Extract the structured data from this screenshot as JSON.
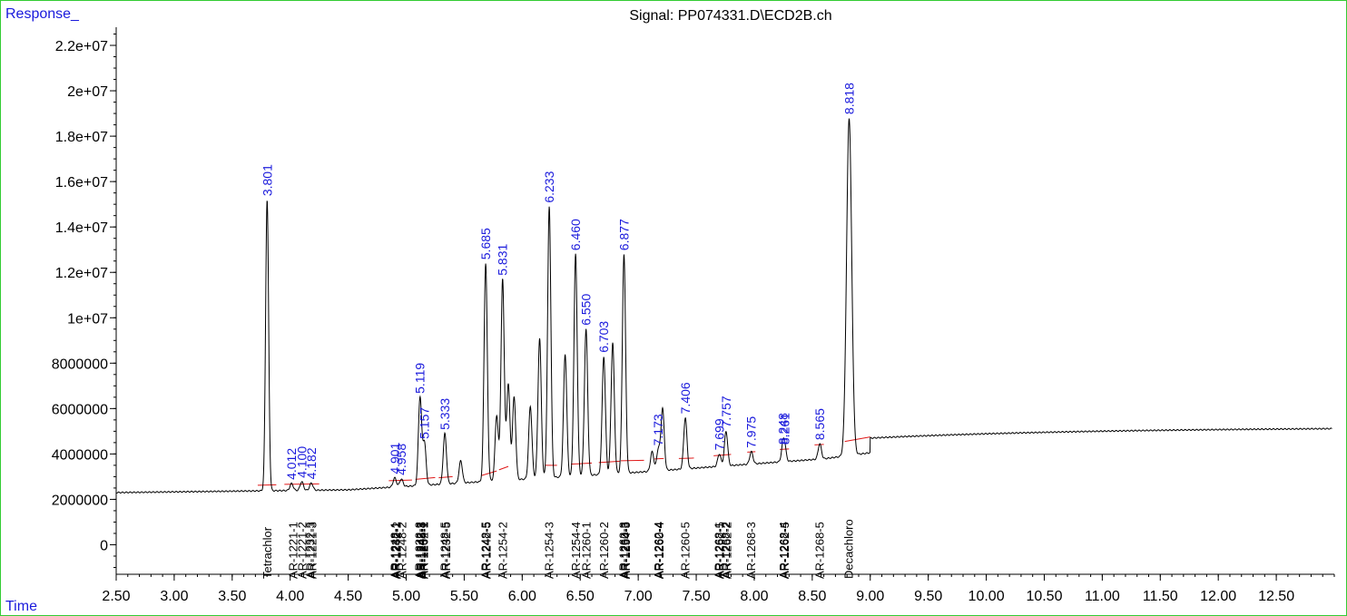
{
  "chart_data": {
    "type": "line",
    "title": "Signal: PP074331.D\\ECD2B.ch",
    "ylabel": "Response_",
    "xlabel": "Time",
    "xlim": [
      2.5,
      13.0
    ],
    "ylim": [
      -1300000,
      22800000
    ],
    "x_ticks": [
      "2.50",
      "3.00",
      "3.50",
      "4.00",
      "4.50",
      "5.00",
      "5.50",
      "6.00",
      "6.50",
      "7.00",
      "7.50",
      "8.00",
      "8.50",
      "9.00",
      "9.50",
      "10.00",
      "10.50",
      "11.00",
      "11.50",
      "12.00",
      "12.50"
    ],
    "y_ticks": [
      "0",
      "2000000",
      "4000000",
      "6000000",
      "8000000",
      "1e+07",
      "1.2e+07",
      "1.4e+07",
      "1.6e+07",
      "1.8e+07",
      "2e+07",
      "2.2e+07"
    ],
    "peaks": [
      {
        "rt": 3.801,
        "label": "3.801",
        "height": 15200000
      },
      {
        "rt": 4.012,
        "label": "4.012",
        "height": 2700000
      },
      {
        "rt": 4.1,
        "label": "4.100",
        "height": 2780000
      },
      {
        "rt": 4.182,
        "label": "4.182",
        "height": 2720000
      },
      {
        "rt": 4.901,
        "label": "4.901",
        "height": 2950000
      },
      {
        "rt": 4.958,
        "label": "4.958",
        "height": 2900000
      },
      {
        "rt": 5.119,
        "label": "5.119",
        "height": 6500000
      },
      {
        "rt": 5.157,
        "label": "5.157",
        "height": 4500000
      },
      {
        "rt": 5.333,
        "label": "5.333",
        "height": 4900000
      },
      {
        "rt": 5.685,
        "label": "5.685",
        "height": 12400000
      },
      {
        "rt": 5.831,
        "label": "5.831",
        "height": 11700000
      },
      {
        "rt": 6.233,
        "label": "6.233",
        "height": 14900000
      },
      {
        "rt": 6.46,
        "label": "6.460",
        "height": 12800000
      },
      {
        "rt": 6.55,
        "label": "6.550",
        "height": 9500000
      },
      {
        "rt": 6.703,
        "label": "6.703",
        "height": 8300000
      },
      {
        "rt": 6.877,
        "label": "6.877",
        "height": 12800000
      },
      {
        "rt": 7.173,
        "label": "7.173",
        "height": 4200000
      },
      {
        "rt": 7.406,
        "label": "7.406",
        "height": 5600000
      },
      {
        "rt": 7.699,
        "label": "7.699",
        "height": 4000000
      },
      {
        "rt": 7.757,
        "label": "7.757",
        "height": 5000000
      },
      {
        "rt": 7.975,
        "label": "7.975",
        "height": 4100000
      },
      {
        "rt": 8.248,
        "label": "8.248",
        "height": 4250000
      },
      {
        "rt": 8.261,
        "label": "8.261",
        "height": 4250000
      },
      {
        "rt": 8.565,
        "label": "8.565",
        "height": 4450000
      },
      {
        "rt": 8.818,
        "label": "8.818",
        "height": 18800000
      }
    ],
    "unlabeled_peaks": [
      {
        "rt": 5.47,
        "height": 3700000
      },
      {
        "rt": 5.78,
        "height": 5700000
      },
      {
        "rt": 5.88,
        "height": 7100000
      },
      {
        "rt": 5.93,
        "height": 6500000
      },
      {
        "rt": 6.07,
        "height": 6100000
      },
      {
        "rt": 6.15,
        "height": 9100000
      },
      {
        "rt": 6.37,
        "height": 8400000
      },
      {
        "rt": 6.78,
        "height": 8900000
      },
      {
        "rt": 7.12,
        "height": 4100000
      },
      {
        "rt": 7.21,
        "height": 6000000
      }
    ],
    "baseline_segments": [
      [
        3.72,
        2620000,
        3.88,
        2640000
      ],
      [
        3.95,
        2660000,
        4.25,
        2680000
      ],
      [
        4.85,
        2820000,
        5.05,
        2850000
      ],
      [
        5.08,
        2880000,
        5.25,
        2960000
      ],
      [
        5.28,
        2950000,
        5.4,
        3000000
      ],
      [
        5.65,
        3050000,
        5.78,
        3250000
      ],
      [
        5.8,
        3300000,
        5.88,
        3450000
      ],
      [
        6.2,
        3500000,
        6.3,
        3500000
      ],
      [
        6.42,
        3550000,
        6.6,
        3600000
      ],
      [
        6.66,
        3620000,
        6.84,
        3680000
      ],
      [
        6.85,
        3700000,
        7.05,
        3720000
      ],
      [
        7.14,
        3780000,
        7.22,
        3800000
      ],
      [
        7.35,
        3800000,
        7.48,
        3820000
      ],
      [
        7.65,
        3920000,
        7.8,
        3980000
      ],
      [
        7.94,
        4080000,
        8.01,
        4100000
      ],
      [
        8.22,
        4200000,
        8.3,
        4220000
      ],
      [
        8.52,
        4400000,
        8.6,
        4420000
      ],
      [
        8.78,
        4550000,
        9.0,
        4750000
      ]
    ],
    "compounds": [
      {
        "rt": 3.8,
        "name": "Tetrachlor"
      },
      {
        "rt": 4.02,
        "name": "AR-1221-1"
      },
      {
        "rt": 4.1,
        "name": "AR-1221-2"
      },
      {
        "rt": 4.17,
        "name": "AR-1232-3"
      },
      {
        "rt": 4.185,
        "name": "AR-1221-3"
      },
      {
        "rt": 4.9,
        "name": "AR-1248-1"
      },
      {
        "rt": 4.905,
        "name": "AR-1232-1"
      },
      {
        "rt": 4.915,
        "name": "AR-1242-2"
      },
      {
        "rt": 4.96,
        "name": "AR-1248-2"
      },
      {
        "rt": 5.11,
        "name": "AR-1232-2"
      },
      {
        "rt": 5.12,
        "name": "AR-1242-3"
      },
      {
        "rt": 5.13,
        "name": "AR-1248-3"
      },
      {
        "rt": 5.14,
        "name": "AR-1254-1"
      },
      {
        "rt": 5.15,
        "name": "AR-1262-1"
      },
      {
        "rt": 5.33,
        "name": "AR-1248-5"
      },
      {
        "rt": 5.34,
        "name": "AR-1232-5"
      },
      {
        "rt": 5.68,
        "name": "AR-1248-5"
      },
      {
        "rt": 5.69,
        "name": "AR-1242-5"
      },
      {
        "rt": 5.83,
        "name": "AR-1254-2"
      },
      {
        "rt": 6.23,
        "name": "AR-1254-3"
      },
      {
        "rt": 6.46,
        "name": "AR-1254-4"
      },
      {
        "rt": 6.55,
        "name": "AR-1260-1"
      },
      {
        "rt": 6.7,
        "name": "AR-1260-2"
      },
      {
        "rt": 6.87,
        "name": "AR-1262-3"
      },
      {
        "rt": 6.88,
        "name": "AR-1260-3"
      },
      {
        "rt": 6.89,
        "name": "AR-1254-5"
      },
      {
        "rt": 7.17,
        "name": "AR-1262-4"
      },
      {
        "rt": 7.18,
        "name": "AR-1260-4"
      },
      {
        "rt": 7.4,
        "name": "AR-1260-5"
      },
      {
        "rt": 7.69,
        "name": "AR-1268-1"
      },
      {
        "rt": 7.7,
        "name": "AR-1262-5"
      },
      {
        "rt": 7.75,
        "name": "AR-1268-2"
      },
      {
        "rt": 7.76,
        "name": "AR-1262-2"
      },
      {
        "rt": 7.97,
        "name": "AR-1268-3"
      },
      {
        "rt": 8.25,
        "name": "AR-1268-4"
      },
      {
        "rt": 8.26,
        "name": "AR-1262-5"
      },
      {
        "rt": 8.56,
        "name": "AR-1268-5"
      },
      {
        "rt": 8.81,
        "name": "Decachloro"
      }
    ],
    "grid": false,
    "legend": "none"
  }
}
